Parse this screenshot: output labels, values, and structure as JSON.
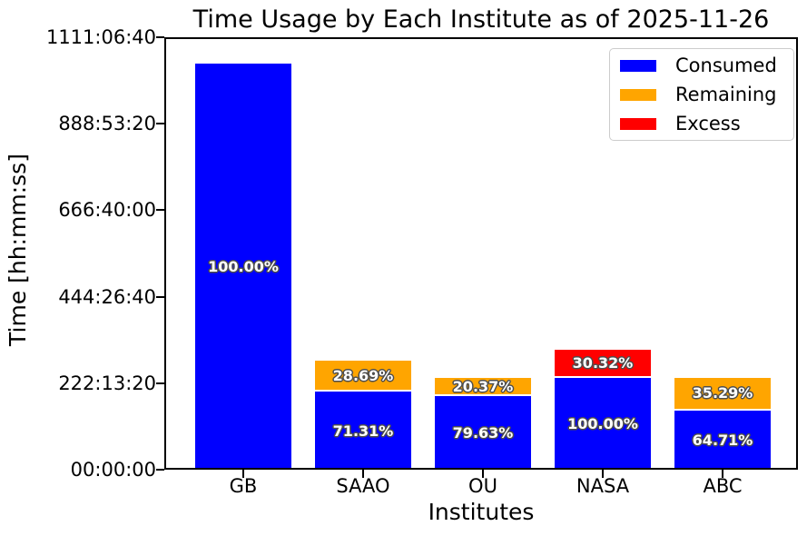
{
  "figure": {
    "background": "#ffffff",
    "text_color": "#000000"
  },
  "chart_data": {
    "type": "bar",
    "stacked": true,
    "title": "Time Usage by Each Institute as of 2025-11-26",
    "xlabel": "Institutes",
    "ylabel": "Time [hh:mm:ss]",
    "categories": [
      "GB",
      "SAAO",
      "OU",
      "NASA",
      "ABC"
    ],
    "y_ticks": [
      {
        "label": "00:00:00",
        "seconds": 0
      },
      {
        "label": "222:13:20",
        "seconds": 800000
      },
      {
        "label": "444:26:40",
        "seconds": 1600000
      },
      {
        "label": "666:40:00",
        "seconds": 2400000
      },
      {
        "label": "888:53:20",
        "seconds": 3200000
      },
      {
        "label": "1111:06:40",
        "seconds": 4000000
      }
    ],
    "ylim_seconds": [
      0,
      4000000
    ],
    "grid": false,
    "legend_position": "upper right",
    "legend": [
      {
        "label": "Consumed",
        "color": "#0000ff"
      },
      {
        "label": "Remaining",
        "color": "#ffa500"
      },
      {
        "label": "Excess",
        "color": "#ff0000"
      }
    ],
    "series": [
      {
        "name": "Consumed",
        "color": "#0000ff",
        "values_seconds": [
          3760000,
          719000,
          677000,
          850000,
          550000
        ],
        "labels": [
          "100.00%",
          "71.31%",
          "79.63%",
          "100.00%",
          "64.71%"
        ]
      },
      {
        "name": "Remaining",
        "color": "#ffa500",
        "values_seconds": [
          0,
          289000,
          173000,
          0,
          300000
        ],
        "labels": [
          "",
          "28.69%",
          "20.37%",
          "",
          "35.29%"
        ]
      },
      {
        "name": "Excess",
        "color": "#ff0000",
        "values_seconds": [
          0,
          0,
          0,
          258000,
          0
        ],
        "labels": [
          "",
          "",
          "",
          "30.32%",
          ""
        ]
      }
    ]
  }
}
